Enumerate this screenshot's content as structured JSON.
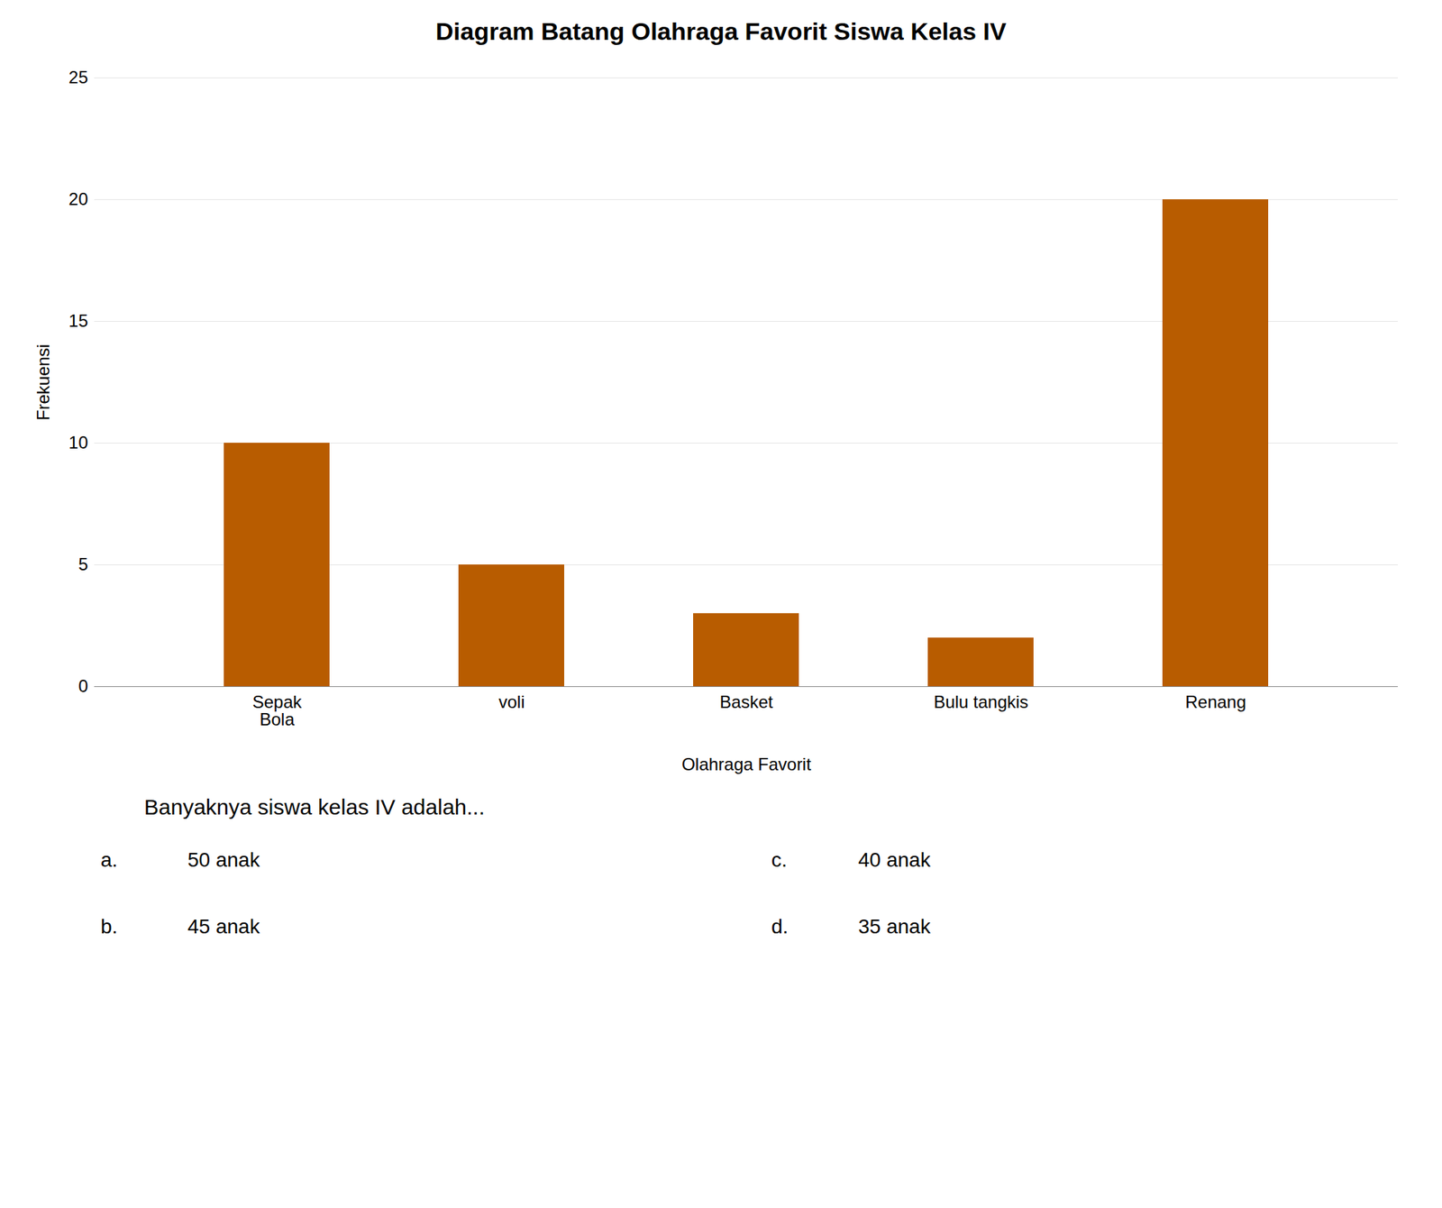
{
  "chart_data": {
    "type": "bar",
    "title": "Diagram Batang Olahraga Favorit Siswa Kelas IV",
    "xlabel": "Olahraga Favorit",
    "ylabel": "Frekuensi",
    "categories": [
      "Sepak\nBola",
      "voli",
      "Basket",
      "Bulu tangkis",
      "Renang"
    ],
    "values": [
      10,
      5,
      3,
      2,
      20
    ],
    "color": "#b85c00",
    "ylim": [
      0,
      25
    ],
    "yticks": [
      0,
      5,
      10,
      15,
      20,
      25
    ],
    "grid": true,
    "annotations": [
      "Banyaknya siswa kelas IV adalah...",
      "a.",
      "50 anak",
      "b.",
      "45 anak",
      "c.",
      "40 anak",
      "d.",
      "35 anak"
    ]
  }
}
